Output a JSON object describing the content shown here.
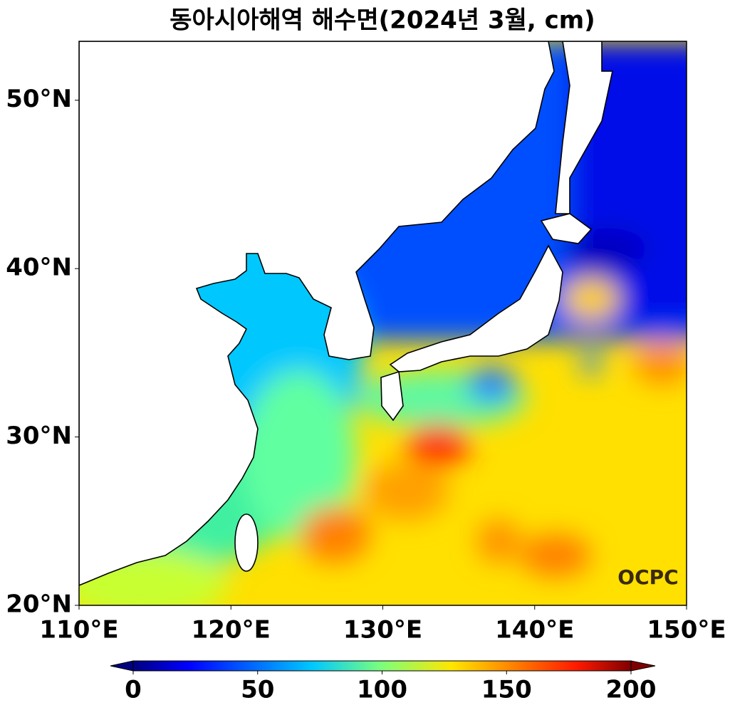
{
  "chart_data": {
    "type": "map",
    "title": "동아시아해역 해수면(2024년 3월, cm)",
    "xlim": [
      110,
      150
    ],
    "ylim": [
      20,
      53.5
    ],
    "xticks": [
      {
        "value": 110,
        "label": "110°E"
      },
      {
        "value": 120,
        "label": "120°E"
      },
      {
        "value": 130,
        "label": "130°E"
      },
      {
        "value": 140,
        "label": "140°E"
      },
      {
        "value": 150,
        "label": "150°E"
      }
    ],
    "yticks": [
      {
        "value": 20,
        "label": "20°N"
      },
      {
        "value": 30,
        "label": "30°N"
      },
      {
        "value": 40,
        "label": "40°N"
      },
      {
        "value": 50,
        "label": "50°N"
      }
    ],
    "colorbar": {
      "clim": [
        0,
        200
      ],
      "ticks": [
        0,
        50,
        100,
        150,
        200
      ]
    },
    "watermark": "OCPC"
  }
}
